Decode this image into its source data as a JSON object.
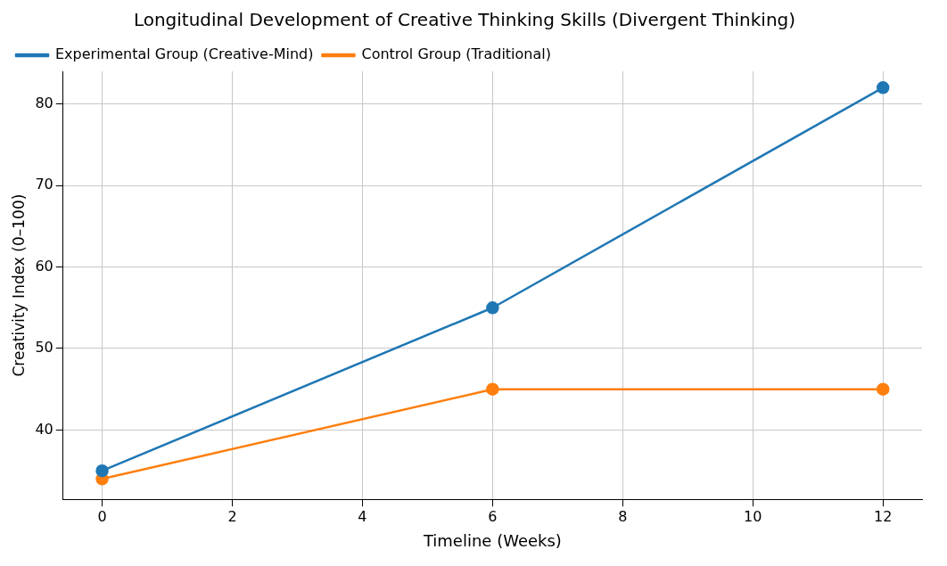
{
  "chart_data": {
    "type": "line",
    "title": "Longitudinal Development of Creative Thinking Skills (Divergent Thinking)",
    "xlabel": "Timeline (Weeks)",
    "ylabel": "Creativity Index (0–100)",
    "x": [
      0,
      6,
      12
    ],
    "series": [
      {
        "name": "Experimental Group (Creative-Mind)",
        "color": "#1f77b4",
        "values": [
          35,
          55,
          82
        ]
      },
      {
        "name": "Control Group (Traditional)",
        "color": "#ff7f0e",
        "values": [
          34,
          45,
          45
        ]
      }
    ],
    "xlim": [
      -0.6,
      12.6
    ],
    "xticks": [
      0,
      2,
      4,
      6,
      8,
      10,
      12
    ],
    "ylim": [
      31.5,
      84
    ],
    "yticks": [
      40,
      50,
      60,
      70,
      80
    ],
    "grid": true,
    "legend": "top left",
    "marker": "circle",
    "line_style": "solid"
  }
}
